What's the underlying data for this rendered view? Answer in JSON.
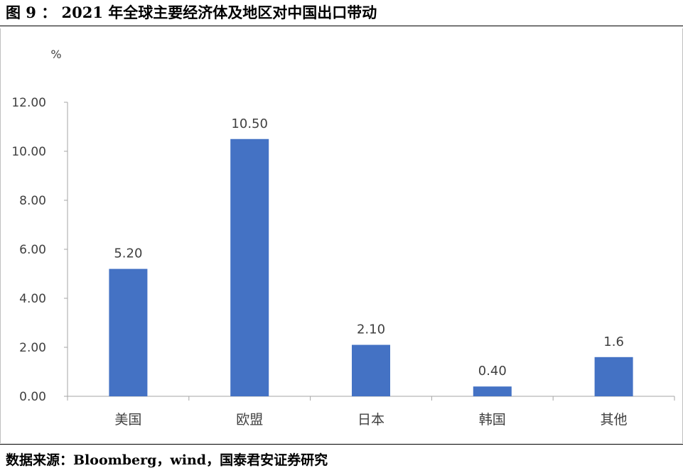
{
  "figure_title": "图 9 ： 2021 年全球主要经济体及地区对中国出口带动",
  "source_note": "数据来源：Bloomberg，wind，国泰君安证券研究",
  "chart_data": {
    "type": "bar",
    "title": "",
    "xlabel": "",
    "ylabel": "%",
    "ylim": [
      0,
      12
    ],
    "yticks": [
      "0.00",
      "2.00",
      "4.00",
      "6.00",
      "8.00",
      "10.00",
      "12.00"
    ],
    "categories": [
      "美国",
      "欧盟",
      "日本",
      "韩国",
      "其他"
    ],
    "values": [
      5.2,
      10.5,
      2.1,
      0.4,
      1.6
    ],
    "data_labels": [
      "5.20",
      "10.50",
      "2.10",
      "0.40",
      "1.6"
    ],
    "bar_color": "#4472c4",
    "grid": false,
    "legend": "none"
  }
}
